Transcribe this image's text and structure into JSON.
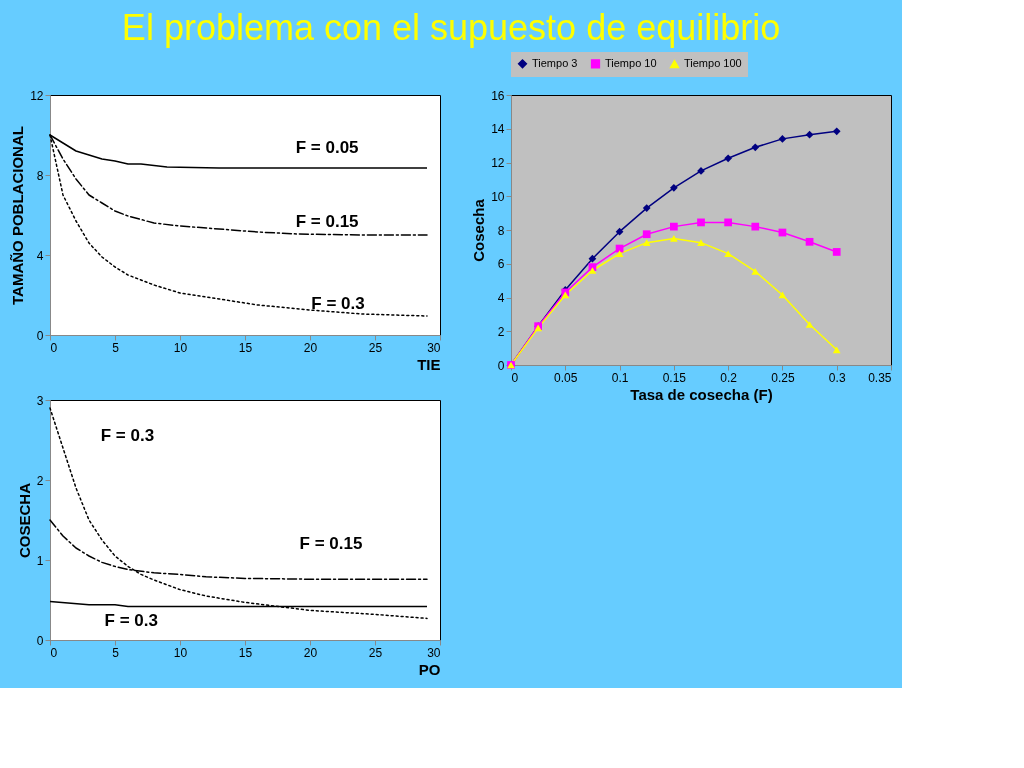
{
  "chart_data": [
    {
      "type": "line",
      "title": "El problema con el supuesto de equilibrio",
      "xlabel": "TIE",
      "ylabel": "TAMAÑO  POBLACIONAL",
      "xlim": [
        0,
        30
      ],
      "xticks": [
        0,
        5,
        10,
        15,
        20,
        25,
        30
      ],
      "ylim": [
        0,
        12
      ],
      "yticks": [
        0,
        4,
        8,
        12
      ],
      "grid": false,
      "legend": false,
      "marker": "none",
      "series": [
        {
          "color": "#000000",
          "line_style": "solid",
          "x": [
            0,
            1,
            2,
            3,
            4,
            5,
            6,
            7,
            9,
            13,
            29
          ],
          "values": [
            10,
            9.6,
            9.2,
            9.0,
            8.8,
            8.7,
            8.55,
            8.55,
            8.4,
            8.35,
            8.35
          ]
        },
        {
          "color": "#000000",
          "line_style": "dashed",
          "x": [
            0,
            1,
            2,
            3,
            4,
            5,
            6,
            8,
            10,
            13,
            16,
            19,
            24,
            29
          ],
          "values": [
            10,
            8.8,
            7.8,
            7.0,
            6.6,
            6.2,
            5.95,
            5.6,
            5.45,
            5.3,
            5.15,
            5.05,
            5.0,
            5.0
          ]
        },
        {
          "color": "#000000",
          "line_style": "dotted",
          "x": [
            0,
            1,
            2,
            3,
            4,
            5,
            6,
            8,
            10,
            13,
            16,
            20,
            24,
            29
          ],
          "values": [
            10,
            7.0,
            5.7,
            4.6,
            3.9,
            3.4,
            3.0,
            2.5,
            2.1,
            1.8,
            1.5,
            1.25,
            1.05,
            0.95
          ]
        }
      ],
      "annotations": [
        "F  = 0.05",
        "F  = 0.15",
        "F  = 0.3"
      ]
    },
    {
      "type": "line",
      "xlabel": "PO",
      "ylabel": "COSECHA",
      "xlim": [
        0,
        30
      ],
      "xticks": [
        0,
        5,
        10,
        15,
        20,
        25,
        30
      ],
      "ylim": [
        0,
        3
      ],
      "yticks": [
        0,
        1,
        2,
        3
      ],
      "grid": false,
      "legend": false,
      "marker": "none",
      "series": [
        {
          "color": "#000000",
          "line_style": "solid",
          "x": [
            0,
            3,
            5,
            6,
            29
          ],
          "values": [
            0.48,
            0.44,
            0.44,
            0.42,
            0.42
          ]
        },
        {
          "color": "#000000",
          "line_style": "dashed",
          "x": [
            0,
            1,
            2,
            3,
            4,
            5,
            6,
            8,
            10,
            12,
            15,
            20,
            29
          ],
          "values": [
            1.5,
            1.3,
            1.15,
            1.05,
            0.97,
            0.92,
            0.88,
            0.84,
            0.82,
            0.79,
            0.77,
            0.76,
            0.76
          ]
        },
        {
          "color": "#000000",
          "line_style": "dotted",
          "x": [
            0,
            1,
            2,
            3,
            4,
            5,
            6,
            7,
            8,
            10,
            12,
            15,
            18,
            20,
            25,
            29
          ],
          "values": [
            2.9,
            2.4,
            1.9,
            1.5,
            1.25,
            1.05,
            0.92,
            0.82,
            0.75,
            0.63,
            0.55,
            0.47,
            0.41,
            0.37,
            0.32,
            0.27
          ]
        }
      ],
      "annotations": [
        "F  = 0.3",
        "F  = 0.15",
        "F  = 0.3"
      ]
    },
    {
      "type": "line",
      "xlabel": "Tasa de cosecha  (F)",
      "ylabel": "Cosecha",
      "xlim": [
        0,
        0.35
      ],
      "xticks": [
        0,
        0.05,
        0.1,
        0.15,
        0.2,
        0.25,
        0.3,
        0.35
      ],
      "ylim": [
        0,
        16
      ],
      "yticks": [
        0,
        2,
        4,
        6,
        8,
        10,
        12,
        14,
        16
      ],
      "grid": false,
      "legend": "top",
      "line_style": "solid",
      "x": [
        0,
        0.025,
        0.05,
        0.075,
        0.1,
        0.125,
        0.15,
        0.175,
        0.2,
        0.225,
        0.25,
        0.275,
        0.3
      ],
      "series": [
        {
          "name": "Tiempo 3",
          "color": "#000080",
          "marker": "diamond",
          "values": [
            0,
            2.3,
            4.45,
            6.3,
            7.9,
            9.3,
            10.5,
            11.5,
            12.25,
            12.9,
            13.4,
            13.65,
            13.85
          ]
        },
        {
          "name": "Tiempo 10",
          "color": "#ff00ff",
          "marker": "square",
          "values": [
            0,
            2.3,
            4.3,
            5.8,
            6.9,
            7.75,
            8.2,
            8.45,
            8.45,
            8.2,
            7.85,
            7.3,
            6.7
          ]
        },
        {
          "name": "Tiempo 100",
          "color": "#ffff00",
          "marker": "triangle",
          "values": [
            0,
            2.2,
            4.15,
            5.6,
            6.6,
            7.25,
            7.5,
            7.25,
            6.6,
            5.55,
            4.15,
            2.4,
            0.9
          ]
        }
      ]
    }
  ]
}
